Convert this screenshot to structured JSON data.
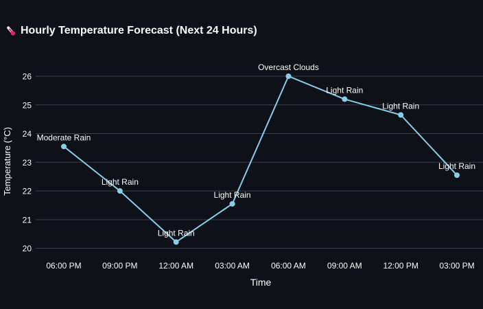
{
  "header": {
    "icon": "thermometer-icon",
    "title": "Hourly Temperature Forecast (Next 24 Hours)"
  },
  "colors": {
    "background": "#0e1117",
    "line": "#87ceeb",
    "grid": "#3a3f4a",
    "text": "#fafafa"
  },
  "chart_data": {
    "type": "line",
    "title": "Hourly Temperature Forecast (Next 24 Hours)",
    "xlabel": "Time",
    "ylabel": "Temperature (°C)",
    "ylim": [
      19.8,
      26.55
    ],
    "yticks": [
      20,
      21,
      22,
      23,
      24,
      25,
      26
    ],
    "grid": true,
    "categories": [
      "06:00 PM",
      "09:00 PM",
      "12:00 AM",
      "03:00 AM",
      "06:00 AM",
      "09:00 AM",
      "12:00 PM",
      "03:00 PM"
    ],
    "values": [
      23.55,
      22.0,
      20.22,
      21.55,
      26.0,
      25.2,
      24.65,
      22.55
    ],
    "annotations": [
      "Moderate Rain",
      "Light Rain",
      "Light Rain",
      "Light Rain",
      "Overcast Clouds",
      "Light Rain",
      "Light Rain",
      "Light Rain"
    ]
  }
}
